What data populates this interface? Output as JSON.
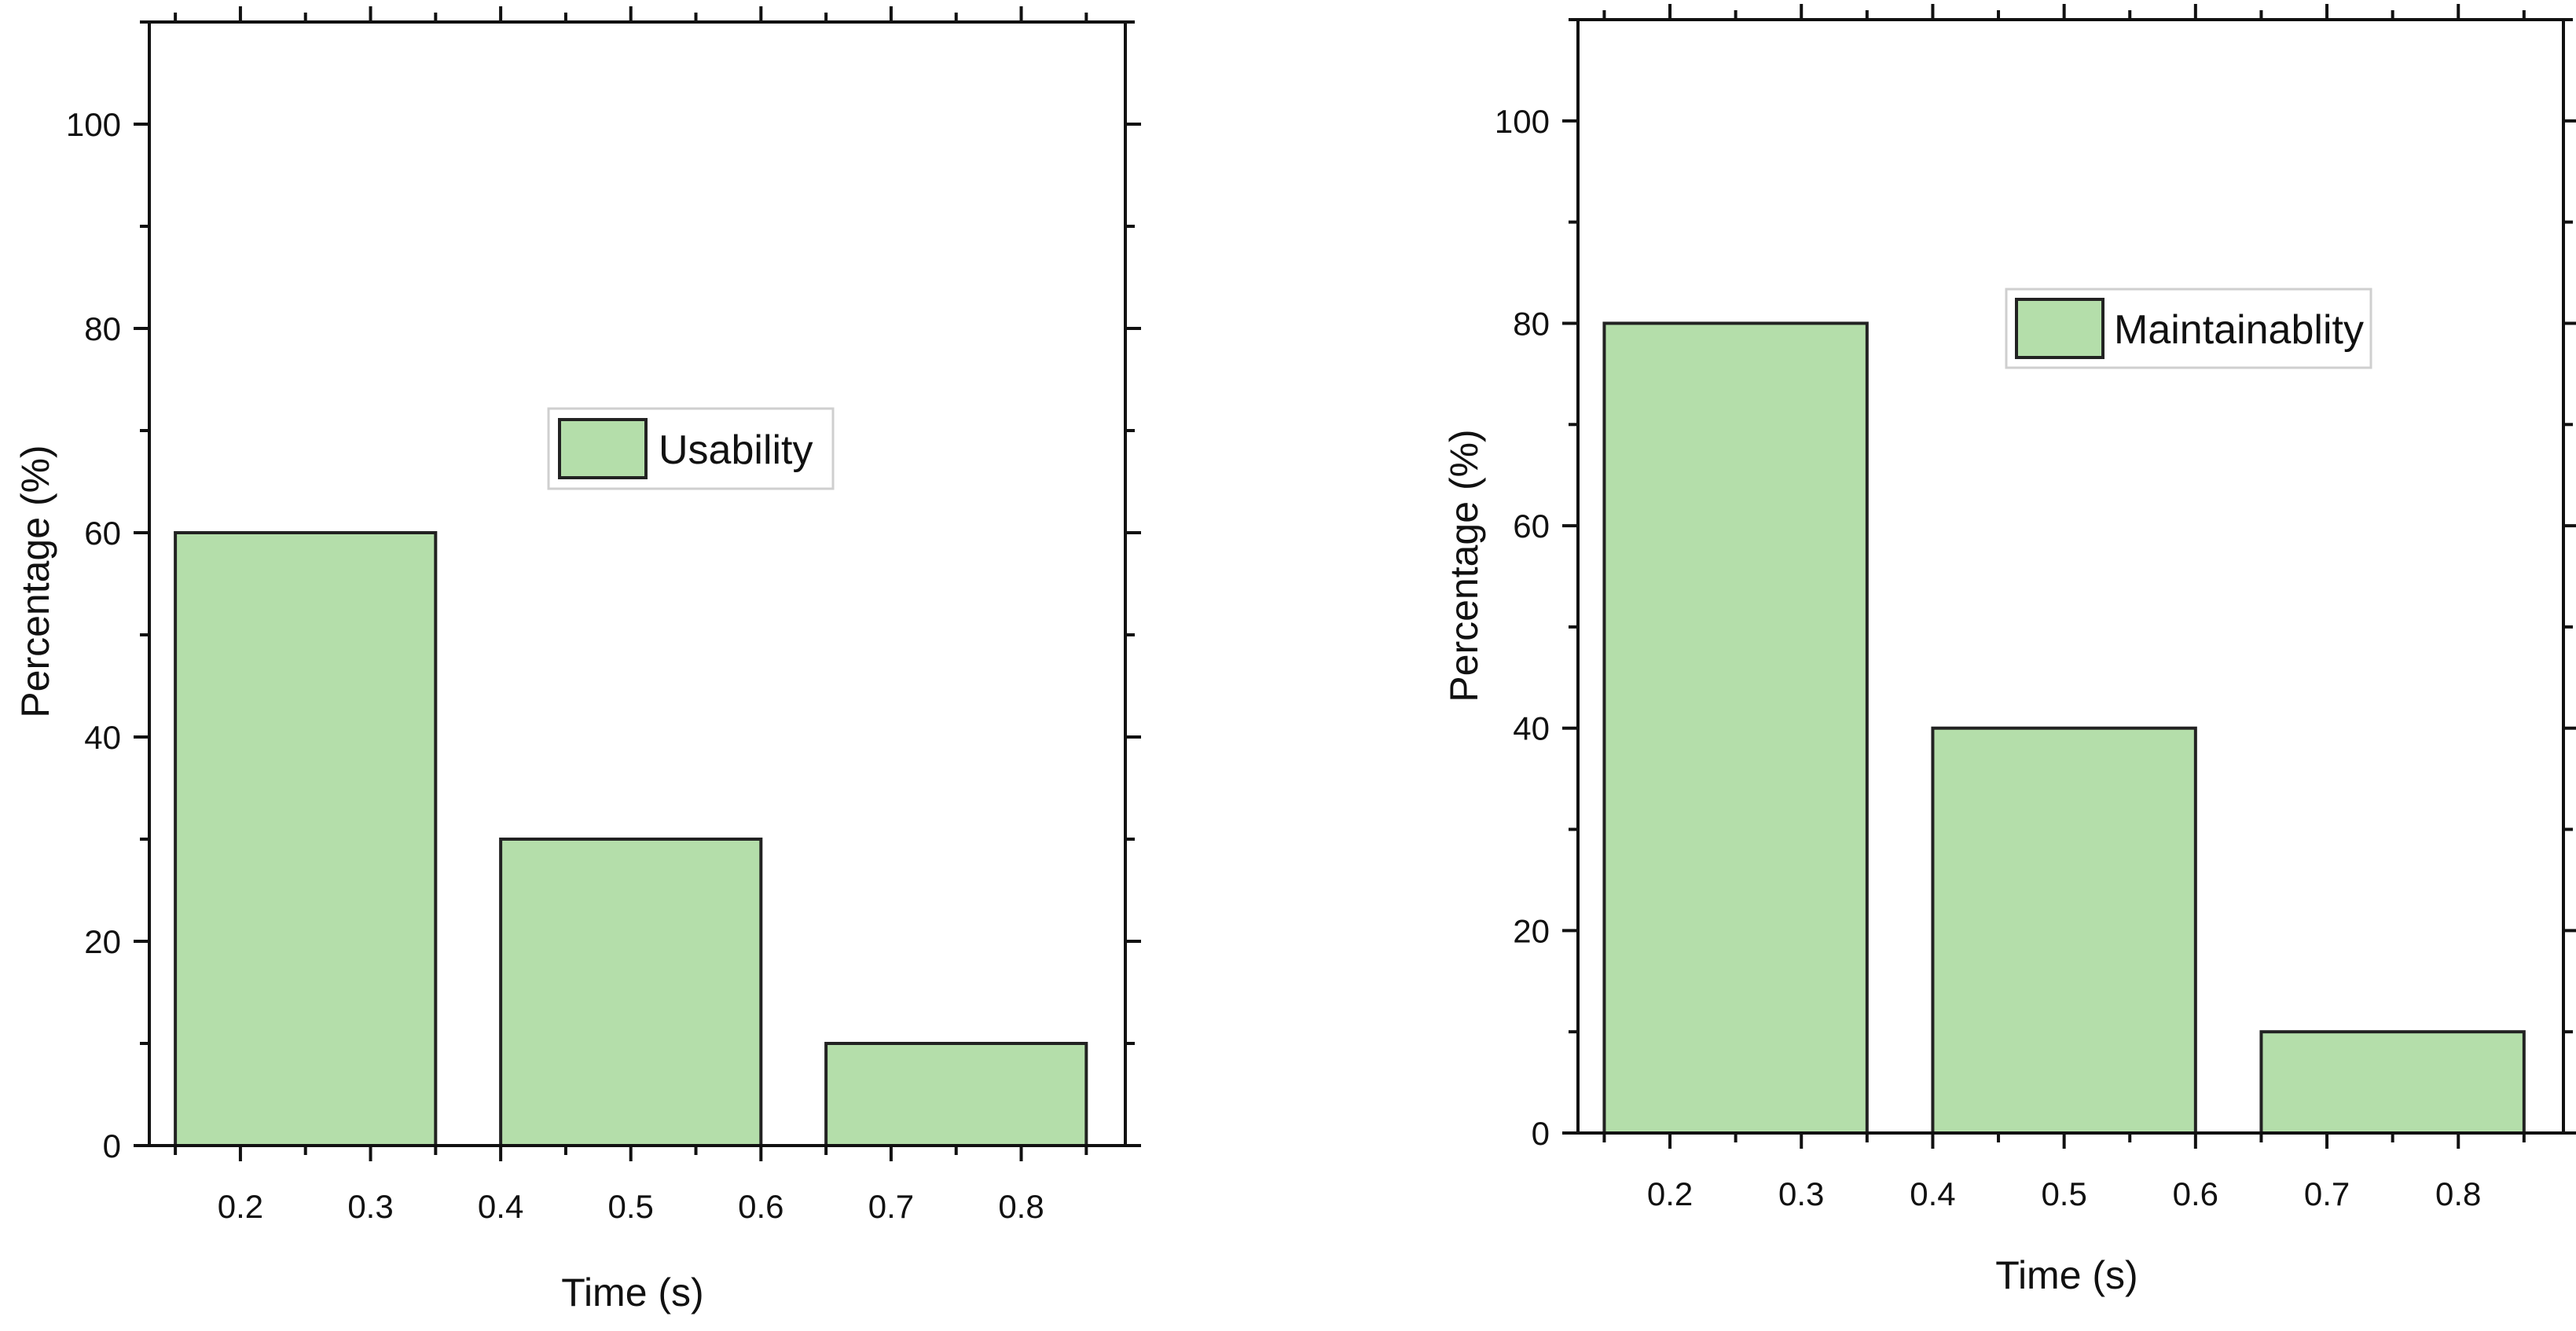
{
  "chart_data": [
    {
      "type": "bar",
      "x_edges": [
        0.15,
        0.35,
        0.4,
        0.6,
        0.65,
        0.85
      ],
      "categories": [
        "0.15-0.35",
        "0.4-0.6",
        "0.65-0.85"
      ],
      "bars": [
        {
          "x_start": 0.15,
          "x_end": 0.35,
          "value": 60
        },
        {
          "x_start": 0.4,
          "x_end": 0.6,
          "value": 30
        },
        {
          "x_start": 0.65,
          "x_end": 0.85,
          "value": 10
        }
      ],
      "series": [
        {
          "name": "Usability",
          "values": [
            60,
            30,
            10
          ]
        }
      ],
      "xlabel": "Time (s)",
      "ylabel": "Percentage (%)",
      "xlim": [
        0.13,
        0.88
      ],
      "ylim": [
        0,
        110
      ],
      "xticks": [
        0.2,
        0.3,
        0.4,
        0.5,
        0.6,
        0.7,
        0.8
      ],
      "xtick_labels": [
        "0.2",
        "0.3",
        "0.4",
        "0.5",
        "0.6",
        "0.7",
        "0.8"
      ],
      "yticks": [
        0,
        20,
        40,
        60,
        80,
        100
      ],
      "ytick_labels": [
        "0",
        "20",
        "40",
        "60",
        "80",
        "100"
      ],
      "legend": "upper-center",
      "grid": false,
      "bar_color": "#b4deaa",
      "bar_edge_color": "#222222"
    },
    {
      "type": "bar",
      "x_edges": [
        0.15,
        0.35,
        0.4,
        0.6,
        0.65,
        0.85
      ],
      "categories": [
        "0.15-0.35",
        "0.4-0.6",
        "0.65-0.85"
      ],
      "bars": [
        {
          "x_start": 0.15,
          "x_end": 0.35,
          "value": 80
        },
        {
          "x_start": 0.4,
          "x_end": 0.6,
          "value": 40
        },
        {
          "x_start": 0.65,
          "x_end": 0.85,
          "value": 10
        }
      ],
      "series": [
        {
          "name": "Maintainablity",
          "values": [
            80,
            40,
            10
          ]
        }
      ],
      "xlabel": "Time (s)",
      "ylabel": "Percentage (%)",
      "xlim": [
        0.13,
        0.88
      ],
      "ylim": [
        0,
        110
      ],
      "xticks": [
        0.2,
        0.3,
        0.4,
        0.5,
        0.6,
        0.7,
        0.8
      ],
      "xtick_labels": [
        "0.2",
        "0.3",
        "0.4",
        "0.5",
        "0.6",
        "0.7",
        "0.8"
      ],
      "yticks": [
        0,
        20,
        40,
        60,
        80,
        100
      ],
      "ytick_labels": [
        "0",
        "20",
        "40",
        "60",
        "80",
        "100"
      ],
      "legend": "upper-center",
      "grid": false,
      "bar_color": "#b4deaa",
      "bar_edge_color": "#222222"
    }
  ]
}
